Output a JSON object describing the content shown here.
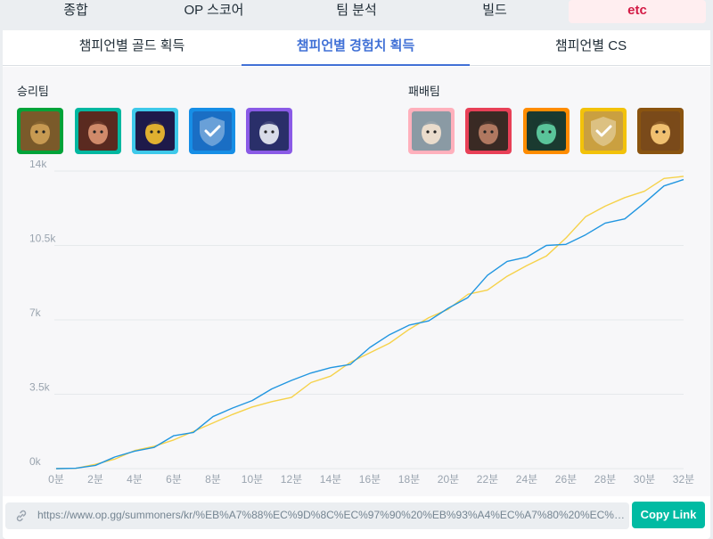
{
  "top_tabs": [
    {
      "label": "종합"
    },
    {
      "label": "OP 스코어"
    },
    {
      "label": "팀 분석"
    },
    {
      "label": "빌드"
    },
    {
      "label": "etc",
      "active": true
    }
  ],
  "sub_tabs": [
    {
      "label": "챔피언별 골드 획득"
    },
    {
      "label": "챔피언별 경험치 획득",
      "active": true
    },
    {
      "label": "챔피언별 CS"
    }
  ],
  "win_team": {
    "label": "승리팀",
    "champions": [
      {
        "icon": "teemo-portrait-icon",
        "border": "#00a339",
        "bg": "#7a5a2a",
        "face": "#c79a52"
      },
      {
        "icon": "lee-sin-portrait-icon",
        "border": "#00b7a0",
        "bg": "#5a2a20",
        "face": "#d08a6a"
      },
      {
        "icon": "veigar-portrait-icon",
        "border": "#3ec9ea",
        "bg": "#1e1a4a",
        "face": "#e0b030"
      },
      {
        "icon": "placeholder-check-icon",
        "border": "#168ee6",
        "bg": "#1a6ec4",
        "face": "#ffffff"
      },
      {
        "icon": "riven-portrait-icon",
        "border": "#8a5ae6",
        "bg": "#2a2f6a",
        "face": "#d8dce8"
      }
    ]
  },
  "lose_team": {
    "label": "패배팀",
    "champions": [
      {
        "icon": "riven-portrait-icon",
        "border": "#ffb0bc",
        "bg": "#8a9aa4",
        "face": "#eadccc"
      },
      {
        "icon": "darius-portrait-icon",
        "border": "#e84057",
        "bg": "#3a2a24",
        "face": "#b07860"
      },
      {
        "icon": "akali-portrait-icon",
        "border": "#ff8c00",
        "bg": "#1a3a30",
        "face": "#5ac49a"
      },
      {
        "icon": "placeholder-check-icon",
        "border": "#f2c20a",
        "bg": "#caa040",
        "face": "#ffffff"
      },
      {
        "icon": "leona-portrait-icon",
        "border": "#8a5410",
        "bg": "#7a4a1a",
        "face": "#f0c070"
      }
    ]
  },
  "chart_data": {
    "type": "line",
    "title": "챔피언별 경험치 획득",
    "xlabel": "",
    "ylabel": "",
    "ylim": [
      0,
      14000
    ],
    "x_ticks": [
      "0분",
      "2분",
      "4분",
      "6분",
      "8분",
      "10분",
      "12분",
      "14분",
      "16분",
      "18분",
      "20분",
      "22분",
      "24분",
      "26분",
      "28분",
      "30분",
      "32분"
    ],
    "y_ticks": [
      {
        "value": 0,
        "label": "0k"
      },
      {
        "value": 3500,
        "label": "3.5k"
      },
      {
        "value": 7000,
        "label": "7k"
      },
      {
        "value": 10500,
        "label": "10.5k"
      },
      {
        "value": 14000,
        "label": "14k"
      }
    ],
    "grid": true,
    "x": [
      0,
      1,
      2,
      3,
      4,
      5,
      6,
      7,
      8,
      9,
      10,
      11,
      12,
      13,
      14,
      15,
      16,
      17,
      18,
      19,
      20,
      21,
      22,
      23,
      24,
      25,
      26,
      27,
      28,
      29,
      30,
      31,
      32
    ],
    "series": [
      {
        "name": "승리팀",
        "color": "#2196e0",
        "values": [
          0,
          20,
          150,
          550,
          820,
          1000,
          1550,
          1700,
          2450,
          2850,
          3200,
          3750,
          4150,
          4500,
          4750,
          4900,
          5700,
          6300,
          6750,
          6950,
          7550,
          8050,
          9100,
          9750,
          9950,
          10500,
          10550,
          11000,
          11550,
          11750,
          12500,
          13300,
          13600
        ]
      },
      {
        "name": "패배팀",
        "color": "#f6d24a",
        "values": [
          0,
          15,
          200,
          450,
          850,
          1050,
          1350,
          1750,
          2150,
          2550,
          2900,
          3150,
          3350,
          4050,
          4350,
          5000,
          5450,
          5900,
          6550,
          7100,
          7500,
          8200,
          8400,
          9050,
          9550,
          10000,
          10850,
          11850,
          12350,
          12750,
          13050,
          13650,
          13750
        ]
      }
    ]
  },
  "link": {
    "url": "https://www.op.gg/summoners/kr/%EB%A7%88%EC%9D%8C%EC%97%90%20%EB%93%A4%EC%A7%80%20%EC%95%8...",
    "copy_label": "Copy Link"
  }
}
